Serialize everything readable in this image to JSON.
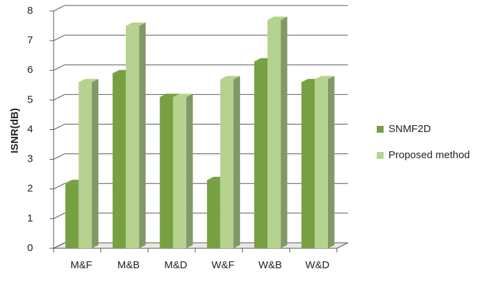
{
  "chart_data": {
    "type": "bar3d",
    "y_label": "ISNR(dB)",
    "categories": [
      "M&F",
      "M&B",
      "M&D",
      "W&F",
      "W&B",
      "W&D"
    ],
    "series": [
      {
        "name": "SNMF2D",
        "color": "#77a043",
        "values": [
          2.2,
          5.9,
          5.1,
          2.3,
          6.3,
          5.6
        ]
      },
      {
        "name": "Proposed method",
        "color": "#b5d38f",
        "values": [
          5.6,
          7.5,
          5.1,
          5.7,
          7.7,
          5.7
        ]
      }
    ],
    "ylim": [
      0,
      8
    ],
    "yticks": [
      0,
      1,
      2,
      3,
      4,
      5,
      6,
      7,
      8
    ],
    "grid": true,
    "legend": "right"
  }
}
